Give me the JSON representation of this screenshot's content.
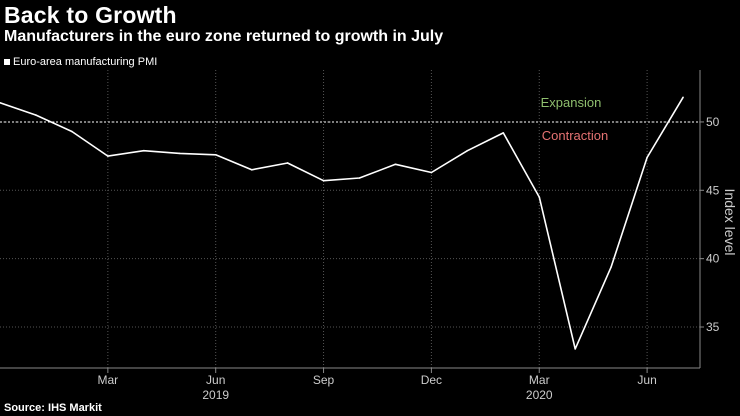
{
  "chart_data": {
    "type": "line",
    "title": "Back to Growth",
    "subtitle": "Manufacturers in the euro zone returned to growth in July",
    "series": [
      {
        "name": "Euro-area manufacturing PMI",
        "values": [
          51.4,
          50.5,
          49.3,
          47.5,
          47.9,
          47.7,
          47.6,
          46.5,
          47.0,
          45.7,
          45.9,
          46.9,
          46.3,
          47.9,
          49.2,
          44.5,
          33.4,
          39.4,
          47.4,
          51.8
        ]
      }
    ],
    "x": [
      "Dec 2018",
      "Jan 2019",
      "Feb 2019",
      "Mar 2019",
      "Apr 2019",
      "May 2019",
      "Jun 2019",
      "Jul 2019",
      "Aug 2019",
      "Sep 2019",
      "Oct 2019",
      "Nov 2019",
      "Dec 2019",
      "Jan 2020",
      "Feb 2020",
      "Mar 2020",
      "Apr 2020",
      "May 2020",
      "Jun 2020",
      "Jul 2020"
    ],
    "x_ticks": [
      {
        "label": "Mar",
        "index": 3
      },
      {
        "label": "Jun",
        "index": 6
      },
      {
        "label": "Sep",
        "index": 9
      },
      {
        "label": "Dec",
        "index": 12
      },
      {
        "label": "Mar",
        "index": 15
      },
      {
        "label": "Jun",
        "index": 18
      }
    ],
    "year_labels": [
      {
        "label": "2019",
        "index": 6
      },
      {
        "label": "2020",
        "index": 15
      }
    ],
    "y_ticks": [
      35,
      40,
      45,
      50
    ],
    "ylim": [
      32,
      53.8
    ],
    "ylabel": "Index level",
    "reference_line": 50,
    "annotations": {
      "expansion": "Expansion",
      "contraction": "Contraction"
    },
    "colors": {
      "line": "#ffffff",
      "expansion": "#8fbf6e",
      "contraction": "#e57373",
      "grid": "#555555"
    }
  },
  "legend_label": "Euro-area manufacturing PMI",
  "source": "Source: IHS Markit"
}
